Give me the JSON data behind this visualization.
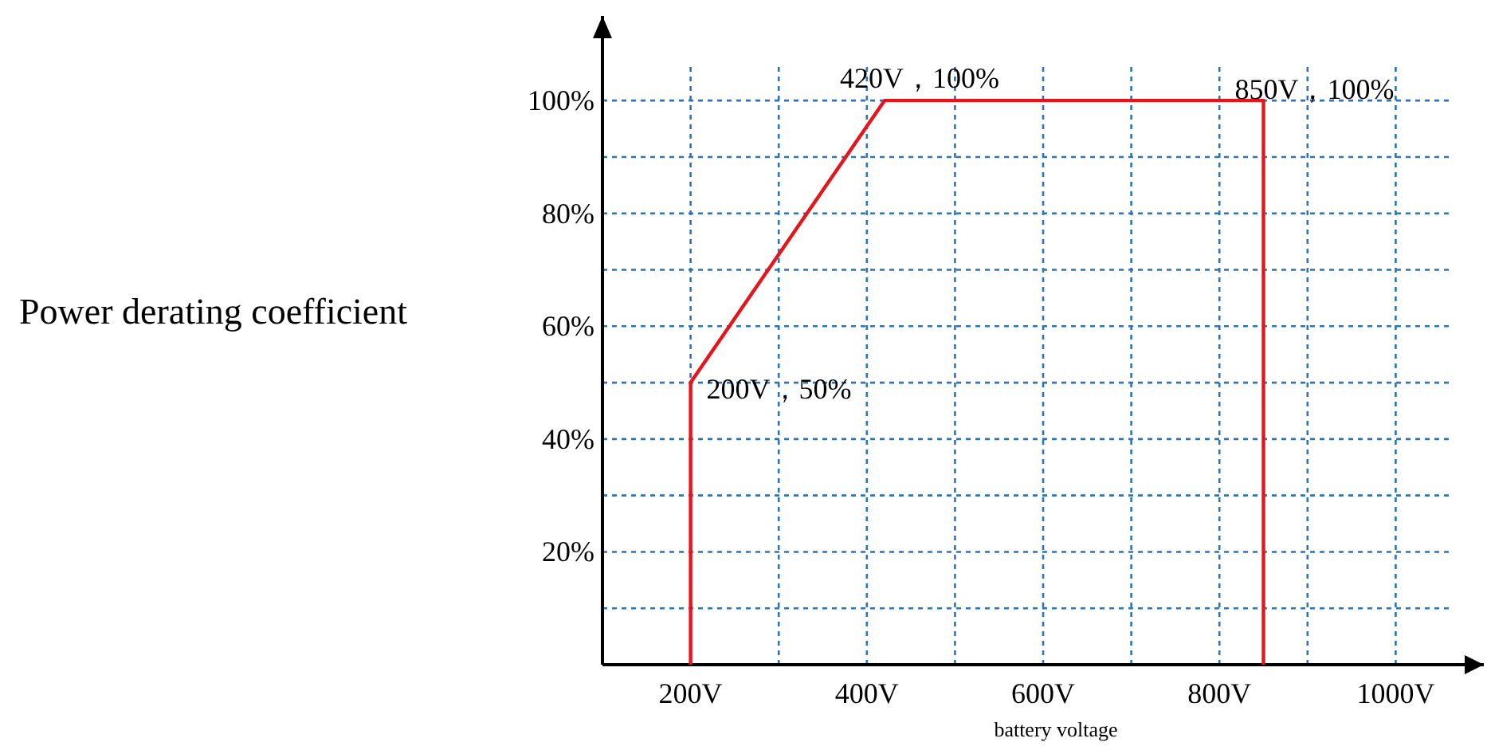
{
  "chart_data": {
    "type": "line",
    "xlabel": "battery voltage",
    "ylabel": "Power derating coefficient",
    "x": [
      200,
      200,
      420,
      850,
      850
    ],
    "series": [
      {
        "color": "#e8141c",
        "values": [
          0,
          50,
          100,
          100,
          0
        ]
      }
    ],
    "xlim": [
      100,
      1100
    ],
    "ylim": [
      0,
      115
    ],
    "xticks": [
      {
        "value": 200,
        "label": "200V"
      },
      {
        "value": 300,
        "label": null
      },
      {
        "value": 400,
        "label": "400V"
      },
      {
        "value": 500,
        "label": null
      },
      {
        "value": 600,
        "label": "600V"
      },
      {
        "value": 700,
        "label": null
      },
      {
        "value": 800,
        "label": "800V"
      },
      {
        "value": 900,
        "label": null
      },
      {
        "value": 1000,
        "label": "1000V"
      }
    ],
    "yticks": [
      {
        "value": 10,
        "label": null
      },
      {
        "value": 20,
        "label": "20%"
      },
      {
        "value": 30,
        "label": null
      },
      {
        "value": 40,
        "label": "40%"
      },
      {
        "value": 50,
        "label": null
      },
      {
        "value": 60,
        "label": "60%"
      },
      {
        "value": 70,
        "label": null
      },
      {
        "value": 80,
        "label": "80%"
      },
      {
        "value": 90,
        "label": null
      },
      {
        "value": 100,
        "label": "100%"
      }
    ],
    "grid": true,
    "marker": "none",
    "line_style": "solid",
    "annotations": [
      {
        "text": "200V，50%",
        "x": 200,
        "y": 50
      },
      {
        "text": "420V，100%",
        "x": 420,
        "y": 100
      },
      {
        "text": "850V，100%",
        "x": 850,
        "y": 100
      }
    ]
  }
}
